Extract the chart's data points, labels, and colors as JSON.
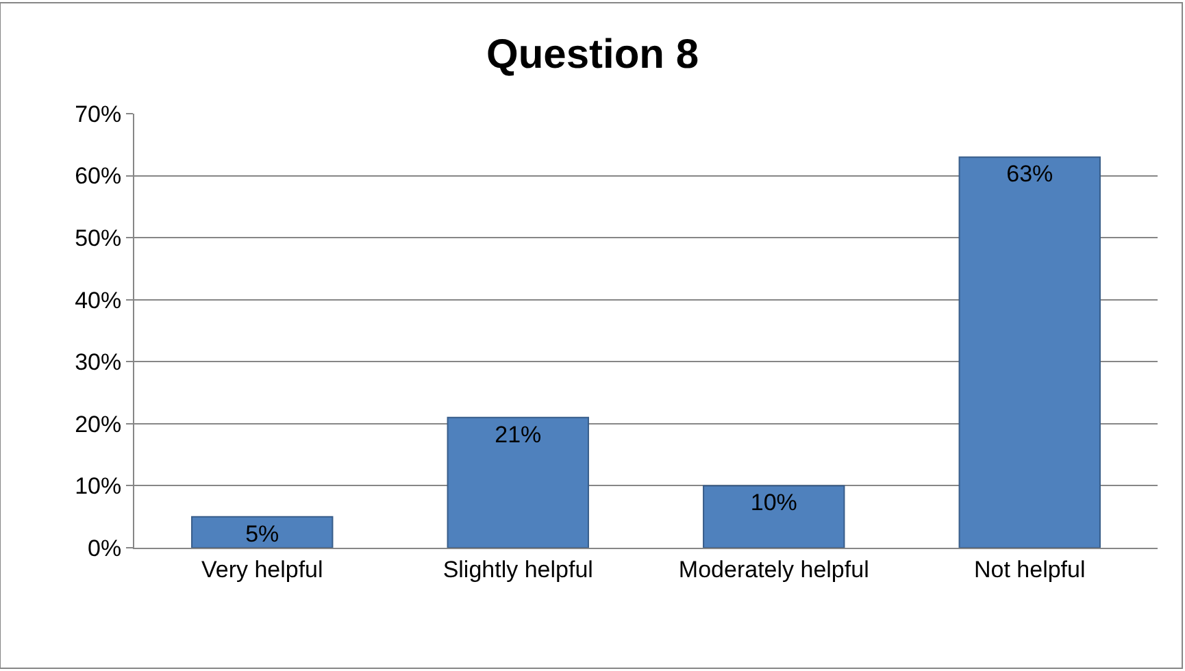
{
  "chart_data": {
    "type": "bar",
    "title": "Question 8",
    "categories": [
      "Very helpful",
      "Slightly helpful",
      "Moderately helpful",
      "Not helpful"
    ],
    "values": [
      5,
      21,
      10,
      63
    ],
    "value_labels": [
      "5%",
      "21%",
      "10%",
      "63%"
    ],
    "color": "#4f81bd",
    "ylim": [
      0,
      70
    ],
    "yticks": [
      {
        "value": 0,
        "label": "0%"
      },
      {
        "value": 10,
        "label": "10%"
      },
      {
        "value": 20,
        "label": "20%"
      },
      {
        "value": 30,
        "label": "30%"
      },
      {
        "value": 40,
        "label": "40%"
      },
      {
        "value": 50,
        "label": "50%"
      },
      {
        "value": 60,
        "label": "60%"
      },
      {
        "value": 70,
        "label": "70%"
      }
    ],
    "grid": true
  }
}
